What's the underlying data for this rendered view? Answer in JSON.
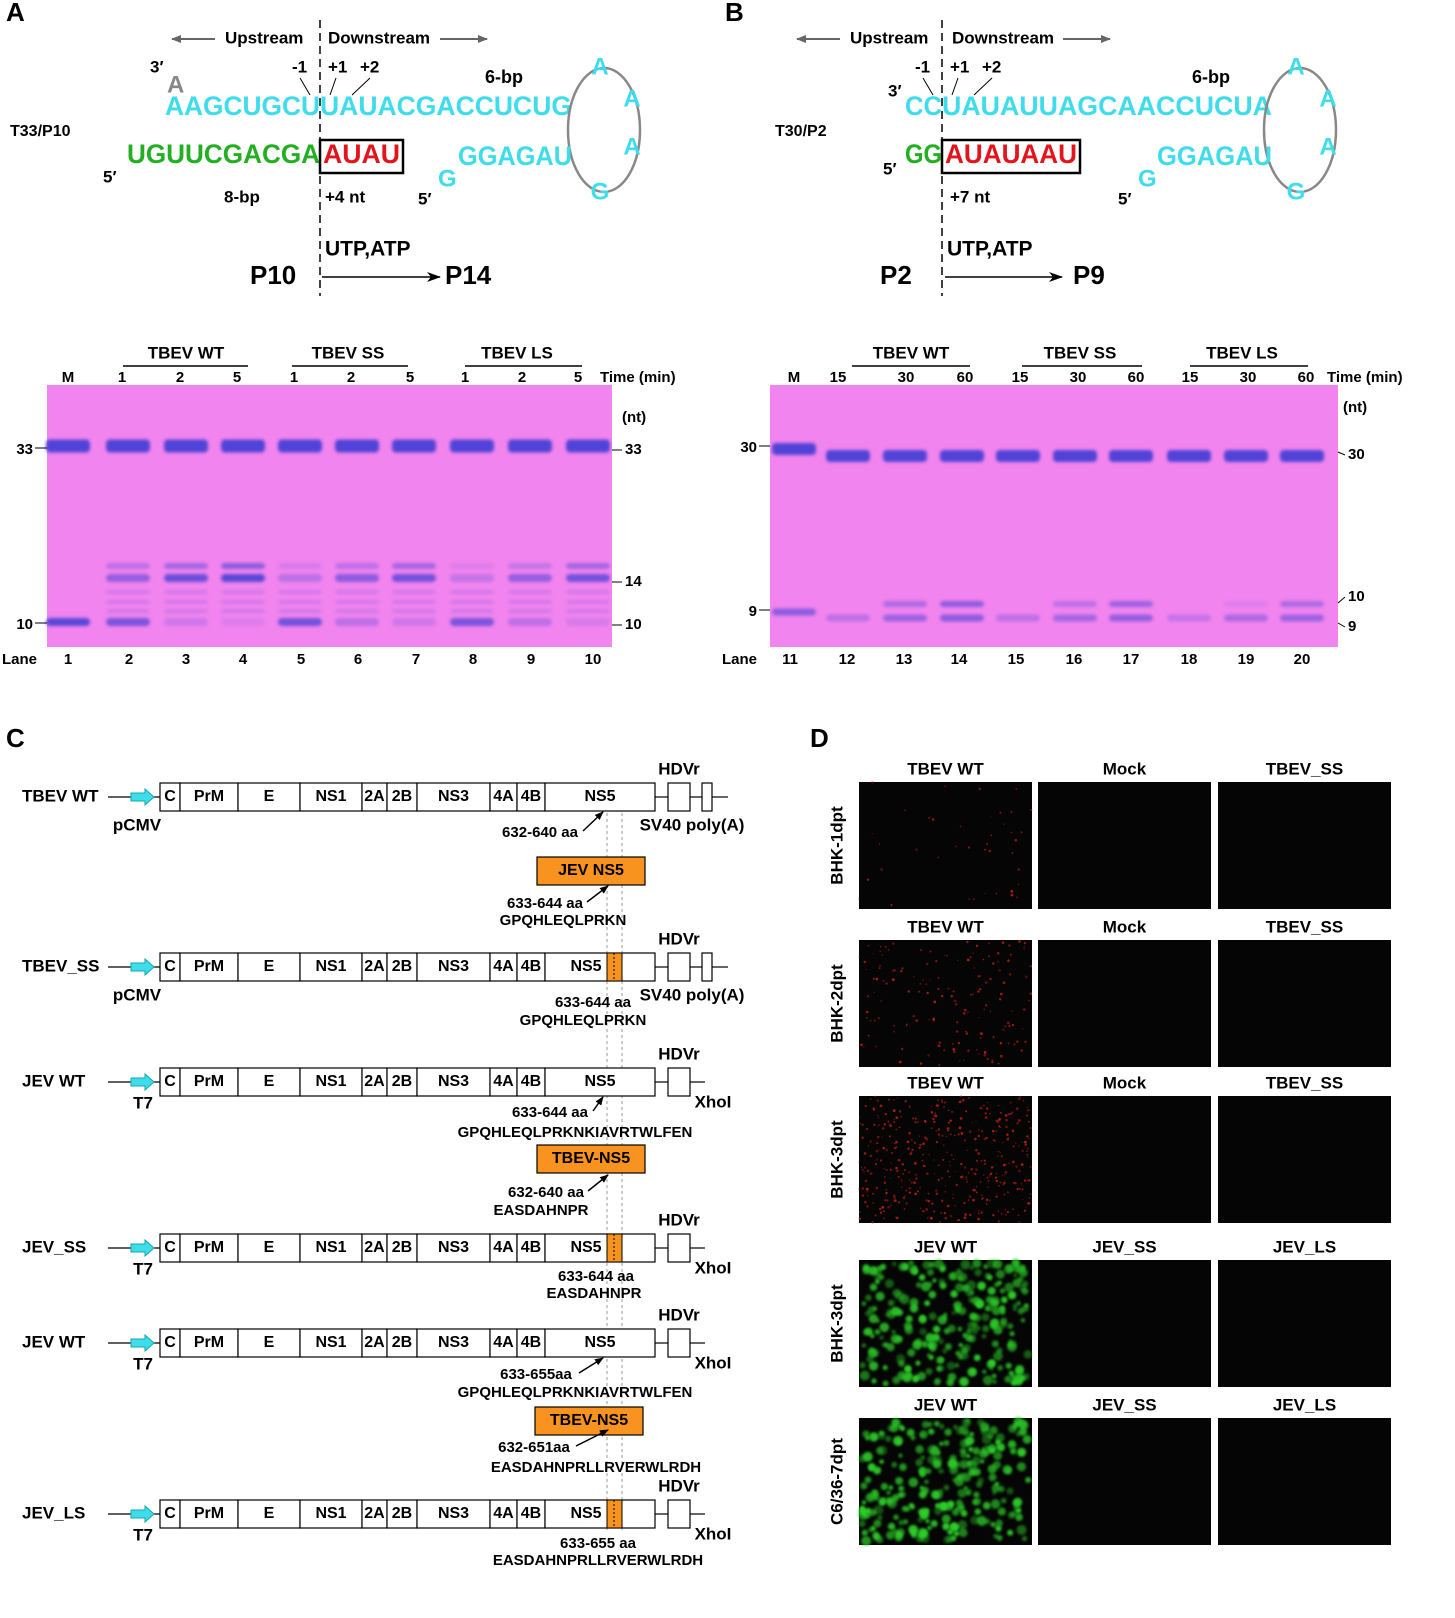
{
  "panel_a": {
    "label": "A",
    "upstream": "Upstream",
    "downstream": "Downstream",
    "three_prime": "3′",
    "overhang": "A",
    "minus1": "-1",
    "plus1": "+1",
    "plus2": "+2",
    "stem": "6-bp",
    "template_upstream": "AAGCUGCU",
    "template_downstream": "UAUACGACCUCUG",
    "loop": [
      "A",
      "A",
      "A",
      "G"
    ],
    "hairpin": "GGAGAU",
    "hairpin_g": "G",
    "hairpin_five_prime": "5′",
    "name": "T33/P10",
    "primer_five_prime": "5′",
    "primer": "UGUUCGACGA",
    "added": "AUAU",
    "duplex": "8-bp",
    "extension": "+4 nt",
    "ntps": "UTP,ATP",
    "substrate": "P10",
    "product": "P14",
    "gel": {
      "groups": [
        "TBEV WT",
        "TBEV SS",
        "TBEV LS"
      ],
      "lanes": [
        "M",
        "1",
        "2",
        "5",
        "1",
        "2",
        "5",
        "1",
        "2",
        "5"
      ],
      "time_label": "Time (min)",
      "size_label": "(nt)",
      "left_markers": [
        "33",
        "10"
      ],
      "right_markers": [
        "33",
        "14",
        "10"
      ],
      "lane_label": "Lane",
      "lane_numbers": [
        "1",
        "2",
        "3",
        "4",
        "5",
        "6",
        "7",
        "8",
        "9",
        "10"
      ]
    }
  },
  "panel_b": {
    "label": "B",
    "upstream": "Upstream",
    "downstream": "Downstream",
    "three_prime": "3′",
    "minus1": "-1",
    "plus1": "+1",
    "plus2": "+2",
    "stem": "6-bp",
    "template_upstream": "CC",
    "template_downstream": "UAUAUUAGCAACCUCUA",
    "loop": [
      "A",
      "A",
      "A",
      "G"
    ],
    "hairpin": "GGAGAU",
    "hairpin_g": "G",
    "hairpin_five_prime": "5′",
    "name": "T30/P2",
    "primer_five_prime": "5′",
    "primer": "GG",
    "added": "AUAUAAU",
    "extension": "+7 nt",
    "ntps": "UTP,ATP",
    "substrate": "P2",
    "product": "P9",
    "gel": {
      "groups": [
        "TBEV WT",
        "TBEV SS",
        "TBEV LS"
      ],
      "lanes": [
        "M",
        "15",
        "30",
        "60",
        "15",
        "30",
        "60",
        "15",
        "30",
        "60"
      ],
      "time_label": "Time (min)",
      "size_label": "(nt)",
      "left_markers": [
        "30",
        "9"
      ],
      "right_markers": [
        "30",
        "10",
        "9"
      ],
      "lane_label": "Lane",
      "lane_numbers": [
        "11",
        "12",
        "13",
        "14",
        "15",
        "16",
        "17",
        "18",
        "19",
        "20"
      ]
    }
  },
  "panel_c": {
    "label": "C",
    "genes": [
      "C",
      "PrM",
      "E",
      "NS1",
      "2A",
      "2B",
      "NS3",
      "4A",
      "4B",
      "NS5"
    ],
    "hdv": "HDVr",
    "constructs": [
      {
        "name": "TBEV WT",
        "promoter": "pCMV",
        "terminator": "SV40 poly(A)",
        "notes": [
          "632-640 aa"
        ]
      },
      {
        "name": "TBEV_SS",
        "promoter": "pCMV",
        "terminator": "SV40 poly(A)",
        "notes": [
          "633-644 aa",
          "GPQHLEQLPRKN"
        ]
      },
      {
        "name": "JEV WT",
        "promoter": "T7",
        "terminator": "XhoI",
        "notes": [
          "633-644 aa",
          "GPQHLEQLPRKNKIAVRTWLFEN"
        ]
      },
      {
        "name": "JEV_SS",
        "promoter": "T7",
        "terminator": "XhoI",
        "notes": [
          "633-644 aa",
          "EASDAHNPR"
        ]
      },
      {
        "name": "JEV WT",
        "promoter": "T7",
        "terminator": "XhoI",
        "notes": [
          "633-655aa",
          "GPQHLEQLPRKNKIAVRTWLFEN"
        ]
      },
      {
        "name": "JEV_LS",
        "promoter": "T7",
        "terminator": "XhoI",
        "notes": [
          "633-655 aa",
          "EASDAHNPRLLRVERWLRDH"
        ]
      }
    ],
    "donors": [
      {
        "label": "JEV NS5",
        "notes": [
          "633-644 aa",
          "GPQHLEQLPRKN"
        ]
      },
      {
        "label": "TBEV-NS5",
        "notes": [
          "632-640 aa",
          "EASDAHNPR"
        ]
      },
      {
        "label": "TBEV-NS5",
        "notes": [
          "632-651aa",
          "EASDAHNPRLLRVERWLRDH"
        ]
      }
    ]
  },
  "panel_d": {
    "label": "D",
    "rows": [
      {
        "label": "BHK-1dpt",
        "columns": [
          "TBEV WT",
          "Mock",
          "TBEV_SS"
        ]
      },
      {
        "label": "BHK-2dpt",
        "columns": [
          "TBEV WT",
          "Mock",
          "TBEV_SS"
        ]
      },
      {
        "label": "BHK-3dpt",
        "columns": [
          "TBEV WT",
          "Mock",
          "TBEV_SS"
        ]
      },
      {
        "label": "BHK-3dpt",
        "columns": [
          "JEV WT",
          "JEV_SS",
          "JEV_LS"
        ]
      },
      {
        "label": "C6/36-7dpt",
        "columns": [
          "JEV WT",
          "JEV_SS",
          "JEV_LS"
        ]
      }
    ]
  }
}
